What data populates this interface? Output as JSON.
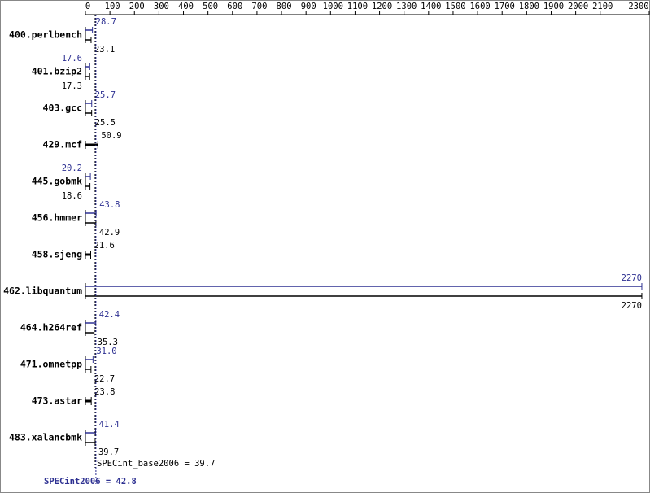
{
  "chart_data": {
    "type": "bar",
    "orientation": "horizontal",
    "categories": [
      "400.perlbench",
      "401.bzip2",
      "403.gcc",
      "429.mcf",
      "445.gobmk",
      "456.hmmer",
      "458.sjeng",
      "462.libquantum",
      "464.h264ref",
      "471.omnetpp",
      "473.astar",
      "483.xalancbmk"
    ],
    "series": [
      {
        "name": "SPECint2006",
        "color": "#2e3192",
        "values": [
          28.7,
          17.6,
          25.7,
          null,
          20.2,
          43.8,
          null,
          2270,
          42.4,
          31.0,
          null,
          41.4
        ],
        "value_labels": [
          "28.7",
          "17.6",
          "25.7",
          null,
          "20.2",
          "43.8",
          null,
          "2270",
          "42.4",
          "31.0",
          null,
          "41.4"
        ]
      },
      {
        "name": "SPECint_base2006",
        "color": "#000000",
        "values": [
          23.1,
          17.3,
          25.5,
          50.9,
          18.6,
          42.9,
          21.6,
          2270,
          35.3,
          22.7,
          23.8,
          39.7
        ]
      }
    ],
    "reference_lines": [
      {
        "label": "SPECint_base2006 = 39.7",
        "value": 39.7,
        "color": "#000000"
      },
      {
        "label": "SPECint2006 = 42.8",
        "value": 42.8,
        "color": "#2e3192"
      }
    ],
    "xlim": [
      0,
      2300
    ],
    "xticks": [
      0,
      100,
      200,
      300,
      400,
      500,
      600,
      700,
      800,
      900,
      1000,
      1100,
      1200,
      1300,
      1400,
      1500,
      1600,
      1700,
      1800,
      1900,
      2000,
      2100,
      2300
    ]
  }
}
